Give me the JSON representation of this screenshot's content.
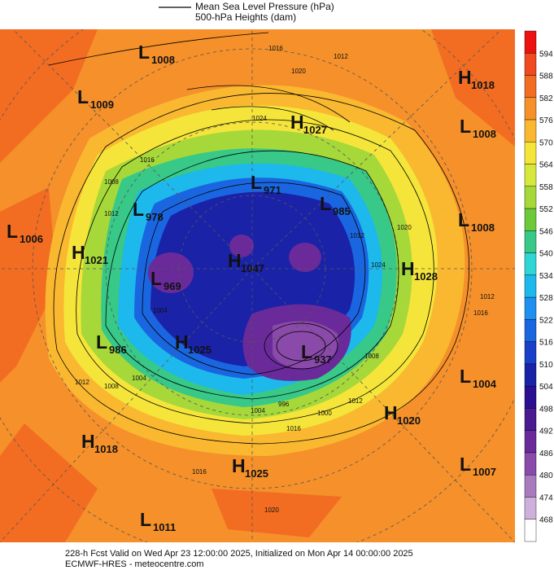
{
  "legend": {
    "line": "Mean Sea Level Pressure (hPa)",
    "fill": "500-hPa Heights (dam)"
  },
  "colorbar": {
    "ticks": [
      594,
      588,
      582,
      576,
      570,
      564,
      558,
      552,
      546,
      540,
      534,
      528,
      522,
      516,
      510,
      504,
      498,
      492,
      486,
      480,
      474,
      468
    ],
    "colors": [
      "#ee1111",
      "#f04a1e",
      "#f26d22",
      "#f5902a",
      "#f9b830",
      "#f5e53a",
      "#d6e83c",
      "#a6d83a",
      "#6cc93a",
      "#38c888",
      "#2fd6d6",
      "#1db8ec",
      "#1e90f0",
      "#1a66e0",
      "#1840c8",
      "#1a22a8",
      "#2a1090",
      "#4a1a90",
      "#6a2a9a",
      "#8a4aaa",
      "#aa7abf",
      "#cfb0dc",
      "#ffffff"
    ]
  },
  "centers": [
    {
      "letter": "L",
      "value": 1008
    },
    {
      "letter": "H",
      "value": 1018
    },
    {
      "letter": "L",
      "value": 1009
    },
    {
      "letter": "H",
      "value": 1027
    },
    {
      "letter": "L",
      "value": 1008
    },
    {
      "letter": "L",
      "value": 971
    },
    {
      "letter": "L",
      "value": 985
    },
    {
      "letter": "L",
      "value": 978
    },
    {
      "letter": "L",
      "value": 1006
    },
    {
      "letter": "L",
      "value": 1008
    },
    {
      "letter": "H",
      "value": 1021
    },
    {
      "letter": "H",
      "value": 1047
    },
    {
      "letter": "H",
      "value": 1028
    },
    {
      "letter": "L",
      "value": 969
    },
    {
      "letter": "L",
      "value": 986
    },
    {
      "letter": "H",
      "value": 1025
    },
    {
      "letter": "L",
      "value": 937
    },
    {
      "letter": "L",
      "value": 1004
    },
    {
      "letter": "H",
      "value": 1020
    },
    {
      "letter": "H",
      "value": 1018
    },
    {
      "letter": "H",
      "value": 1025
    },
    {
      "letter": "L",
      "value": 1007
    },
    {
      "letter": "L",
      "value": 1011
    }
  ],
  "isobar_labels": [
    1016,
    1020,
    1012,
    1024,
    1016,
    1012,
    1008,
    1004,
    1004,
    1012,
    1008,
    1004,
    996,
    1000,
    1012,
    1016,
    1016,
    1020,
    1020,
    1024,
    1016,
    1012,
    1008,
    1012
  ],
  "footer": {
    "line1": "228-h Fcst Valid on Wed Apr 23 12:00:00 2025, Initialized on Mon Apr 14 00:00:00 2025",
    "line2": "ECMWF-HRES - meteocentre.com"
  }
}
